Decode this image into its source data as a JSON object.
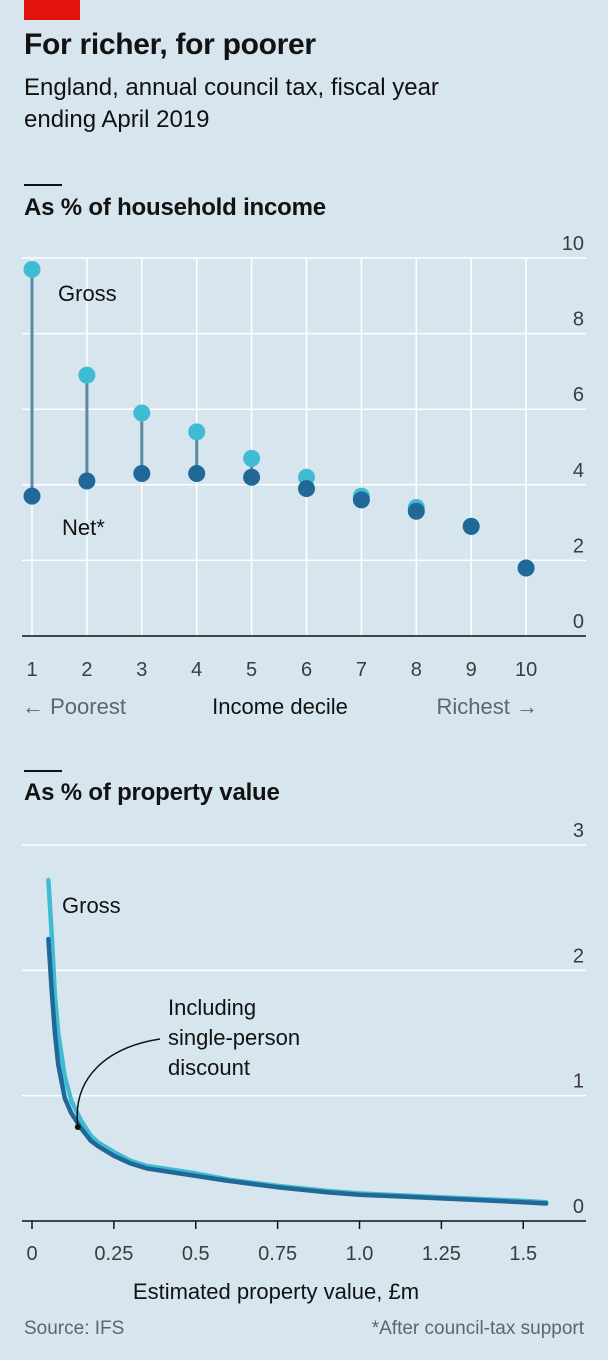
{
  "header": {
    "title": "For richer, for poorer",
    "subtitle": "England, annual council tax, fiscal year ending April 2019"
  },
  "colors": {
    "gross": "#3ebcd2",
    "net": "#1f6898",
    "connector": "#5e8aa0",
    "brand_red": "#e3120b"
  },
  "chart_data": [
    {
      "type": "scatter",
      "title": "As % of household income",
      "x": [
        1,
        2,
        3,
        4,
        5,
        6,
        7,
        8,
        9,
        10
      ],
      "x_tick_labels": [
        "1",
        "2",
        "3",
        "4",
        "5",
        "6",
        "7",
        "8",
        "9",
        "10"
      ],
      "xlabel": "Income decile",
      "xlabel_left": "← Poorest",
      "xlabel_right": "Richest →",
      "ylim": [
        0,
        10
      ],
      "y_ticks": [
        0,
        2,
        4,
        6,
        8,
        10
      ],
      "y_tick_labels": [
        "0",
        "2",
        "4",
        "6",
        "8",
        "10"
      ],
      "grid": true,
      "series": [
        {
          "name": "Gross",
          "values": [
            9.7,
            6.9,
            5.9,
            5.4,
            4.7,
            4.2,
            3.7,
            3.4,
            2.9,
            1.8
          ]
        },
        {
          "name": "Net*",
          "values": [
            3.7,
            4.1,
            4.3,
            4.3,
            4.2,
            3.9,
            3.6,
            3.3,
            2.9,
            1.8
          ]
        }
      ]
    },
    {
      "type": "line",
      "title": "As % of property value",
      "xlabel": "Estimated property value, £m",
      "x_ticks": [
        0,
        0.25,
        0.5,
        0.75,
        1.0,
        1.25,
        1.5
      ],
      "x_tick_labels": [
        "0",
        "0.25",
        "0.5",
        "0.75",
        "1.0",
        "1.25",
        "1.5"
      ],
      "xlim": [
        0,
        1.6
      ],
      "ylim": [
        0,
        3
      ],
      "y_ticks": [
        0,
        1,
        2,
        3
      ],
      "y_tick_labels": [
        "0",
        "1",
        "2",
        "3"
      ],
      "grid": true,
      "annotation": "Including single-person discount",
      "annotation_lines": [
        "Including",
        "single-person",
        "discount"
      ],
      "series": [
        {
          "name": "Gross",
          "x": [
            0.05,
            0.06,
            0.07,
            0.08,
            0.1,
            0.12,
            0.15,
            0.18,
            0.2,
            0.25,
            0.3,
            0.35,
            0.4,
            0.5,
            0.6,
            0.75,
            0.9,
            1.0,
            1.25,
            1.5,
            1.57
          ],
          "values": [
            2.72,
            2.3,
            1.8,
            1.5,
            1.15,
            0.96,
            0.8,
            0.68,
            0.63,
            0.55,
            0.48,
            0.44,
            0.42,
            0.38,
            0.33,
            0.28,
            0.24,
            0.22,
            0.19,
            0.16,
            0.15
          ]
        },
        {
          "name": "",
          "x": [
            0.05,
            0.06,
            0.07,
            0.08,
            0.1,
            0.12,
            0.15,
            0.18,
            0.2,
            0.25,
            0.3,
            0.35,
            0.4,
            0.5,
            0.6,
            0.75,
            0.9,
            1.0,
            1.25,
            1.5,
            1.57
          ],
          "values": [
            2.25,
            1.85,
            1.5,
            1.25,
            0.98,
            0.86,
            0.74,
            0.64,
            0.6,
            0.52,
            0.46,
            0.42,
            0.4,
            0.36,
            0.32,
            0.27,
            0.23,
            0.21,
            0.18,
            0.15,
            0.14
          ]
        }
      ]
    }
  ],
  "footer": {
    "source": "Source: IFS",
    "note": "*After council-tax support"
  }
}
